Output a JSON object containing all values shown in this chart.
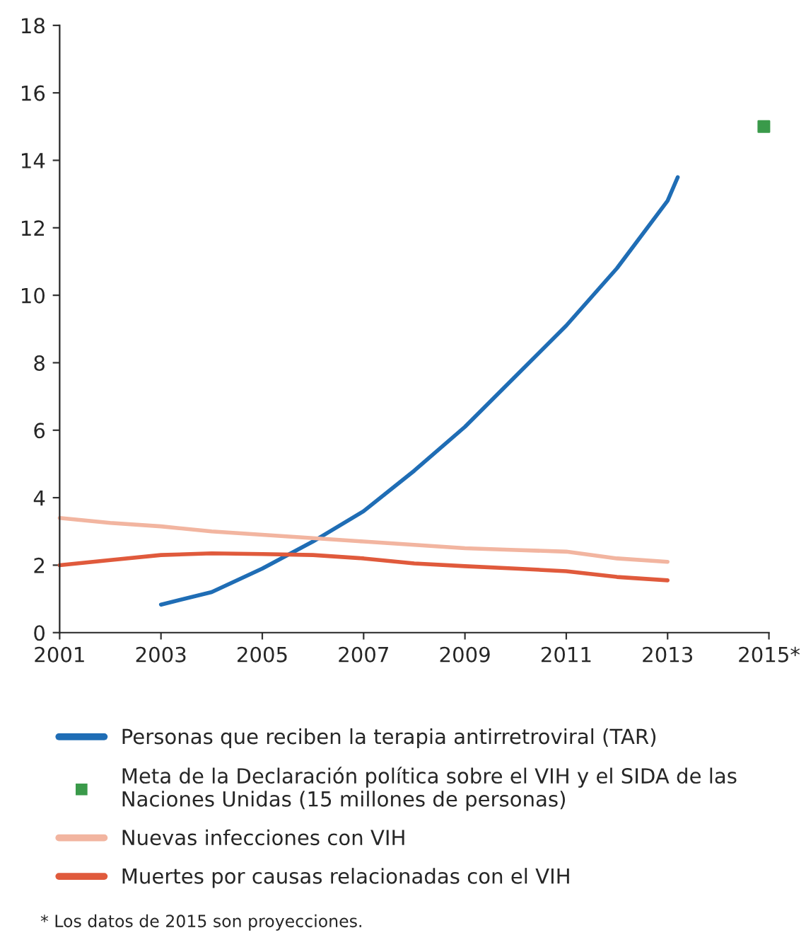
{
  "chart_data": {
    "type": "line",
    "xlim": [
      2001,
      2015
    ],
    "xticks": [
      2001,
      2003,
      2005,
      2007,
      2009,
      2011,
      2013,
      {
        "value": 2015,
        "label": "2015*"
      }
    ],
    "ylim": [
      0,
      18
    ],
    "yticks": [
      0,
      2,
      4,
      6,
      8,
      10,
      12,
      14,
      16,
      18
    ],
    "grid": false,
    "legend": "bottom",
    "marker": "none",
    "line_style": "solid",
    "series": [
      {
        "name": "Personas que reciben la terapia antirretroviral (TAR)",
        "color": "#1f6db5",
        "x": [
          2003,
          2004,
          2005,
          2006,
          2007,
          2008,
          2009,
          2010,
          2011,
          2012,
          2013,
          2013.2
        ],
        "values": [
          0.83,
          1.2,
          1.9,
          2.7,
          3.6,
          4.8,
          6.1,
          7.6,
          9.1,
          10.8,
          12.8,
          13.5
        ]
      },
      {
        "name": "Meta de la Declaración política sobre el VIH y el SIDA de las\nNaciones Unidas (15 millones de personas)",
        "type": "scatter",
        "marker": "square",
        "color": "#3a9a4a",
        "x": [
          2014.9
        ],
        "values": [
          15
        ]
      },
      {
        "name": "Nuevas infecciones con VIH",
        "color": "#f2b5a0",
        "x": [
          2001,
          2002,
          2003,
          2004,
          2005,
          2006,
          2007,
          2008,
          2009,
          2010,
          2011,
          2012,
          2013
        ],
        "values": [
          3.4,
          3.25,
          3.15,
          3.0,
          2.9,
          2.8,
          2.7,
          2.6,
          2.5,
          2.45,
          2.4,
          2.2,
          2.1
        ]
      },
      {
        "name": "Muertes por causas relacionadas con el VIH",
        "color": "#e05a3c",
        "x": [
          2001,
          2002,
          2003,
          2004,
          2005,
          2006,
          2007,
          2008,
          2009,
          2010,
          2011,
          2012,
          2013
        ],
        "values": [
          2.0,
          2.15,
          2.3,
          2.35,
          2.33,
          2.3,
          2.2,
          2.05,
          1.97,
          1.9,
          1.82,
          1.65,
          1.55
        ]
      }
    ],
    "annotations": [
      "* Los datos de 2015 son proyecciones."
    ]
  }
}
